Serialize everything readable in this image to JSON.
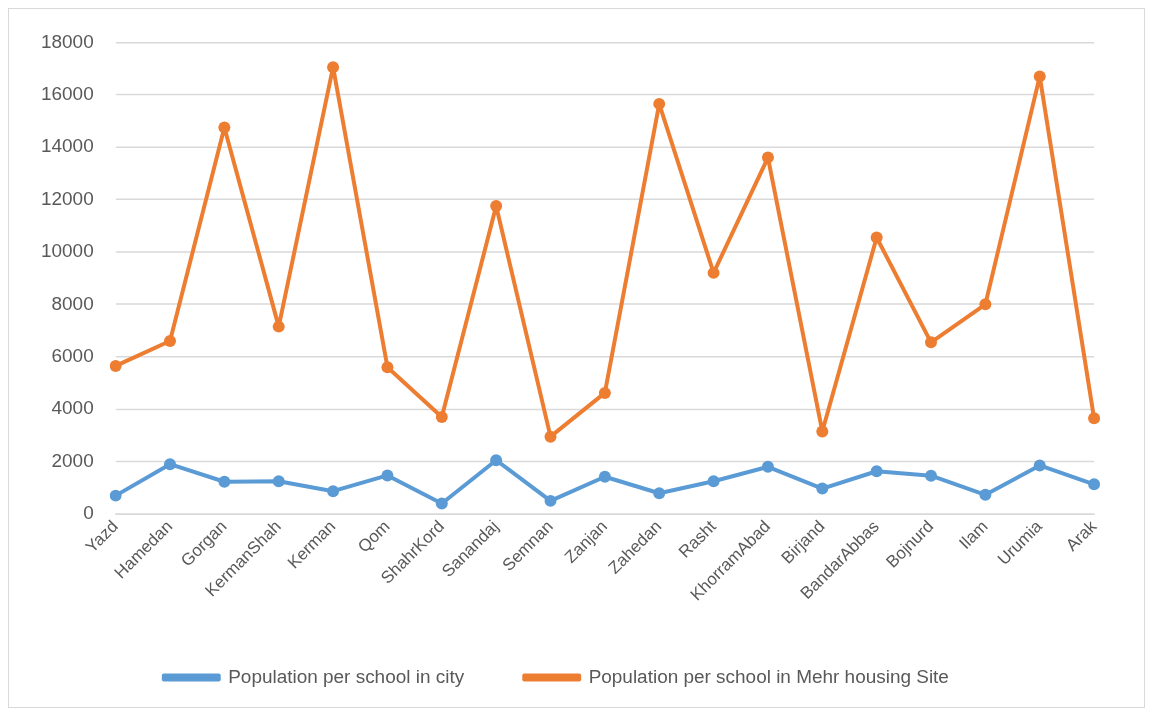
{
  "chart_data": {
    "type": "line",
    "categories": [
      "Yazd",
      "Hamedan",
      "Gorgan",
      "KermanShah",
      "Kerman",
      "Qom",
      "ShahrKord",
      "Sanandaj",
      "Semnan",
      "Zanjan",
      "Zahedan",
      "Rasht",
      "KhorramAbad",
      "Birjand",
      "BandarAbbas",
      "Bojnurd",
      "Ilam",
      "Urumia",
      "Arak"
    ],
    "series": [
      {
        "name": "Population per school in city",
        "color": "#5b9bd5",
        "values": [
          700,
          1900,
          1230,
          1250,
          870,
          1470,
          400,
          2050,
          500,
          1420,
          790,
          1250,
          1800,
          970,
          1630,
          1460,
          730,
          1850,
          1130
        ]
      },
      {
        "name": "Population per school in Mehr housing Site",
        "color": "#ed7d31",
        "values": [
          5650,
          6600,
          14750,
          7150,
          17050,
          5600,
          3700,
          11750,
          2950,
          4620,
          15650,
          9200,
          13600,
          3150,
          10550,
          6550,
          8000,
          16700,
          3650
        ]
      }
    ],
    "ylim": [
      0,
      18000
    ],
    "yticks": [
      0,
      2000,
      4000,
      6000,
      8000,
      10000,
      12000,
      14000,
      16000,
      18000
    ],
    "grid": "y",
    "legend": "bottom",
    "marker": "circle",
    "line_style": "solid"
  }
}
